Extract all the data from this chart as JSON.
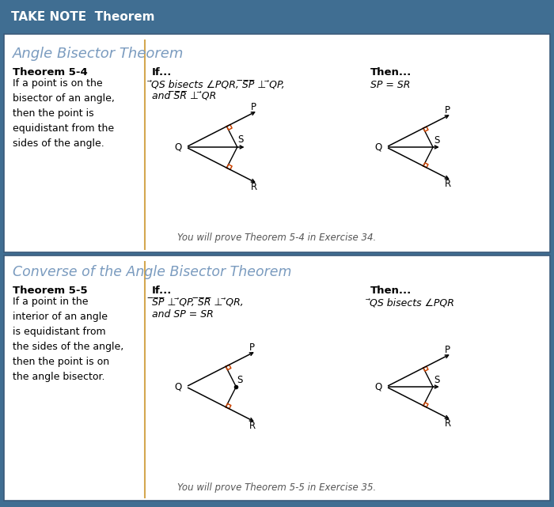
{
  "header_text": "TAKE NOTE  Theorem",
  "header_bg": "#406E92",
  "header_text_color": "#FFFFFF",
  "outer_border_color": "#406E92",
  "section1_title": "Angle Bisector Theorem",
  "section2_title": "Converse of the Angle Bisector Theorem",
  "title_color": "#7A9BBF",
  "theorem54_bold": "Theorem 5-4",
  "theorem54_text": "If a point is on the\nbisector of an angle,\nthen the point is\nequidistant from the\nsides of the angle.",
  "theorem55_bold": "Theorem 5-5",
  "theorem55_text": "If a point in the\ninterior of an angle\nis equidistant from\nthe sides of the angle,\nthen the point is on\nthe angle bisector.",
  "note54": "You will prove Theorem 5-4 in Exercise 34.",
  "note55": "You will prove Theorem 5-5 in Exercise 35.",
  "right_angle_color": "#CC4400",
  "divider_color": "#D4A850",
  "bg_color": "#FFFFFF",
  "text_color": "#000000",
  "section_divider": "#3A5A7A"
}
